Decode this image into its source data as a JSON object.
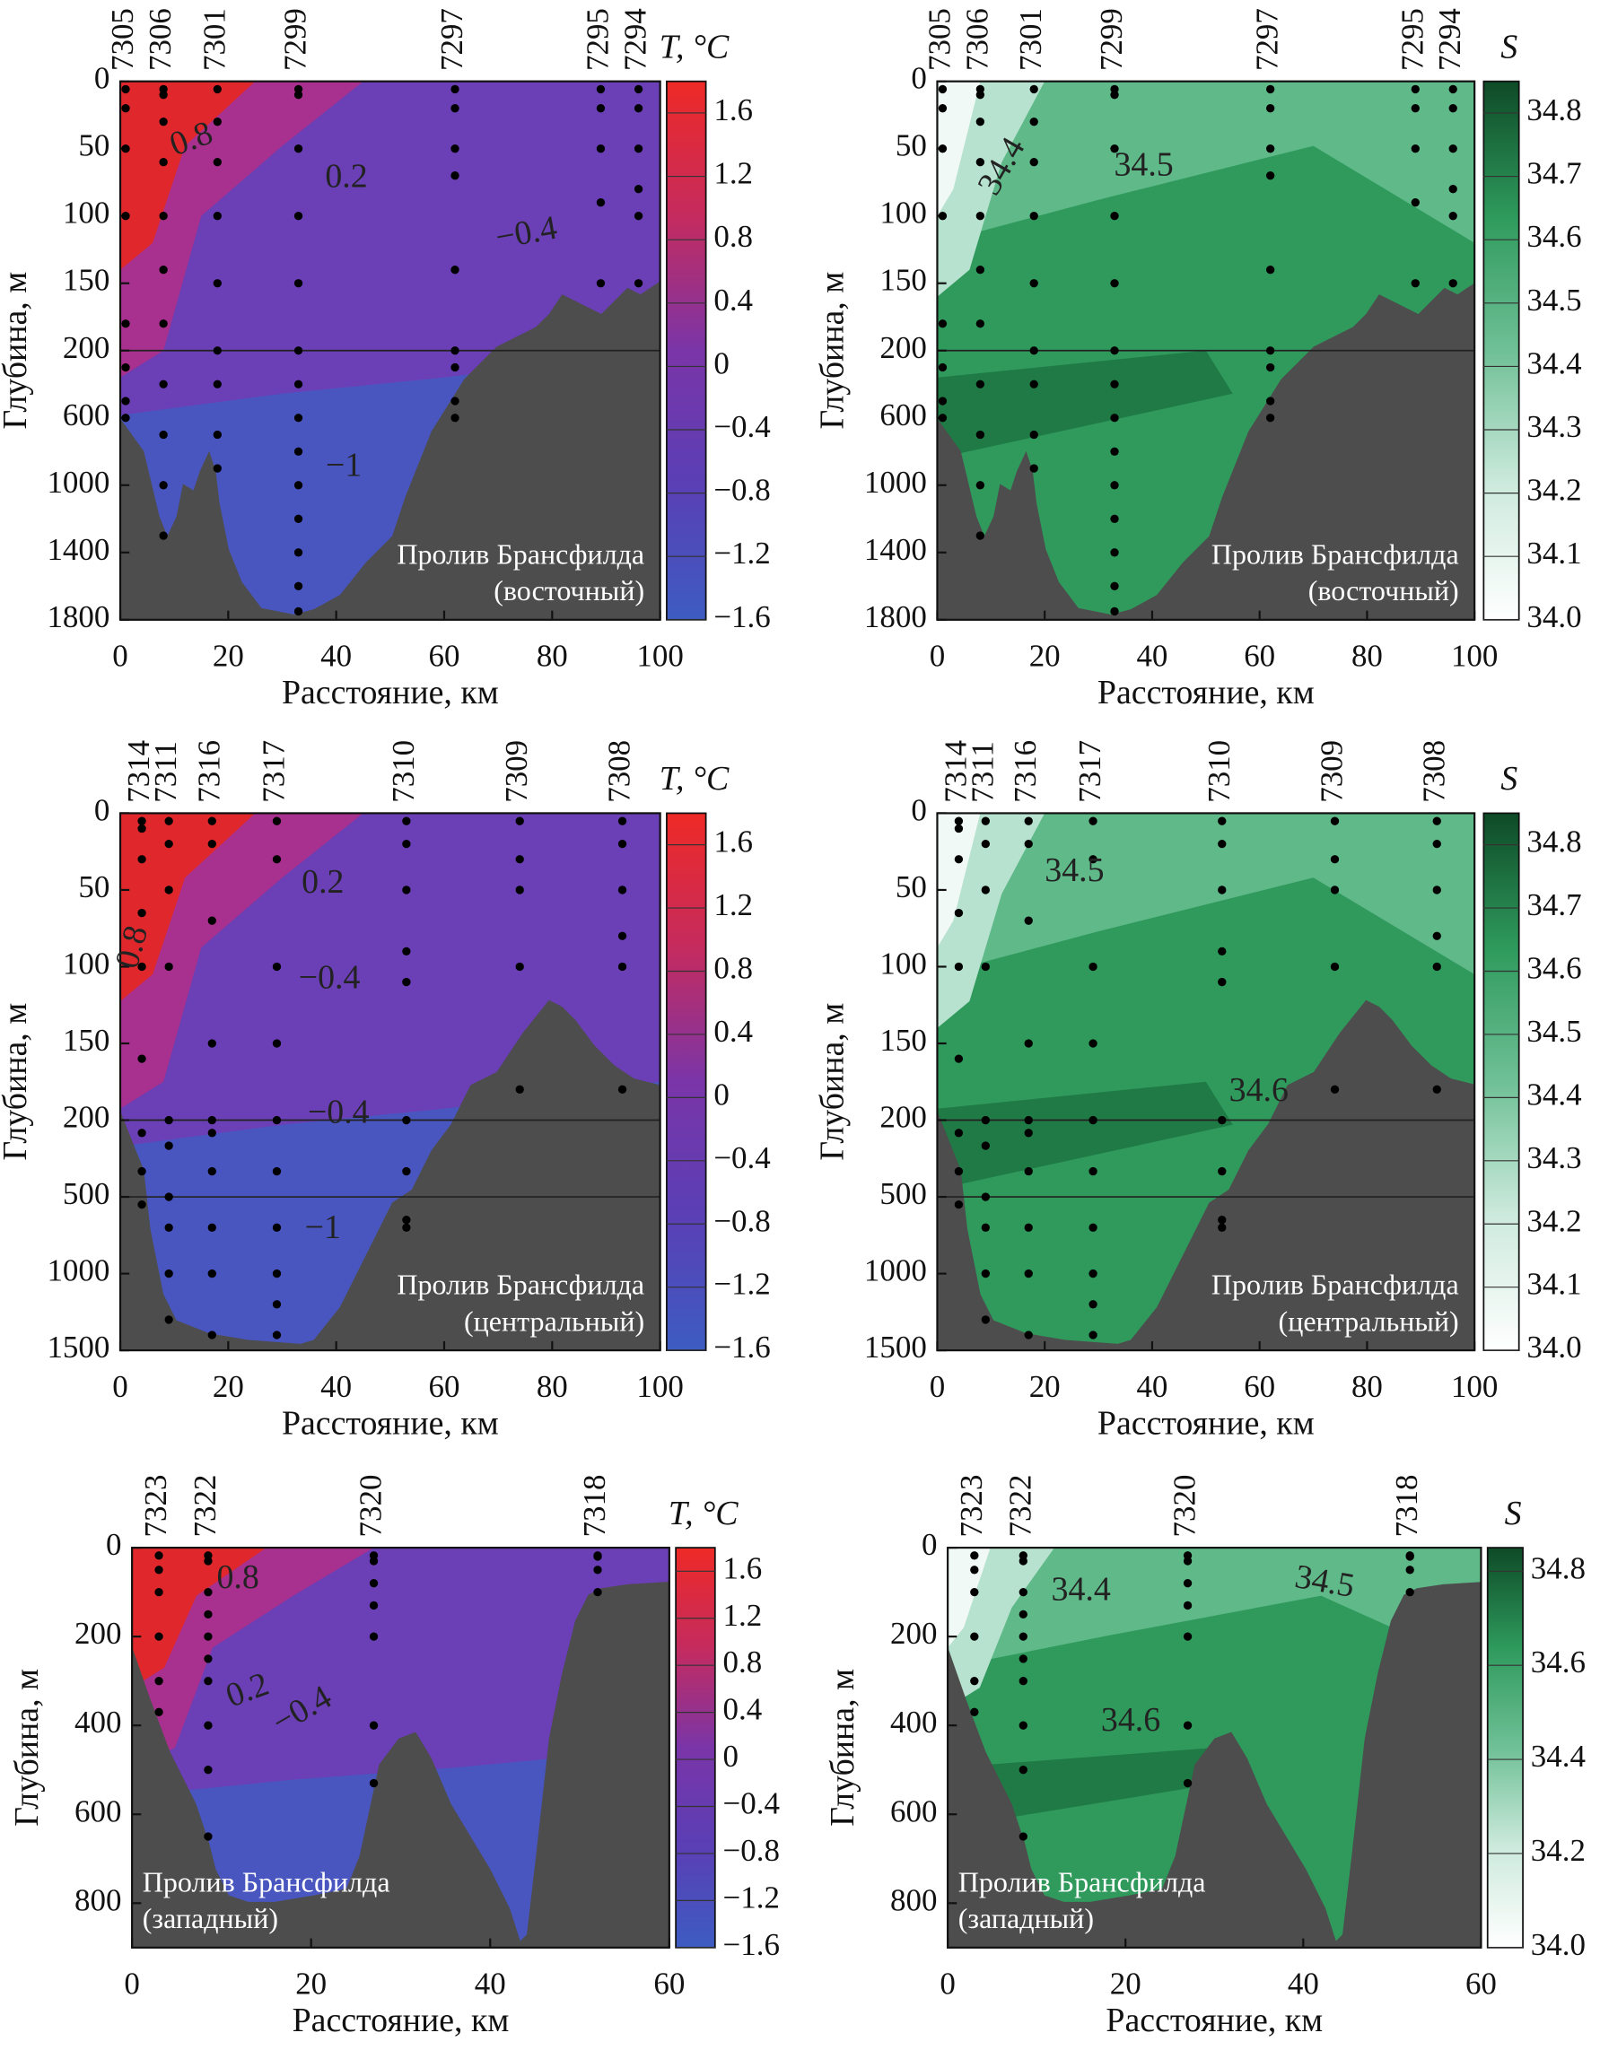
{
  "chart_data": [
    {
      "type": "contour",
      "xlabel": "Расстояние, км",
      "ylabel": "Глубина, м",
      "xlim": [
        0,
        100
      ],
      "xticks": [
        0,
        20,
        40,
        60,
        80,
        100
      ],
      "ylim": [
        0,
        1800
      ],
      "yticks": [
        0,
        50,
        100,
        150,
        200,
        600,
        1000,
        1400,
        1800
      ],
      "stations": [
        {
          "name": "7305",
          "x": 1,
          "depths": [
            0,
            20,
            50,
            100,
            180,
            300,
            500,
            600
          ]
        },
        {
          "name": "7306",
          "x": 8,
          "depths": [
            0,
            10,
            30,
            60,
            100,
            140,
            180,
            400,
            700,
            1000,
            1300
          ]
        },
        {
          "name": "7301",
          "x": 18,
          "depths": [
            0,
            30,
            60,
            100,
            150,
            200,
            400,
            700,
            900
          ]
        },
        {
          "name": "7299",
          "x": 33,
          "depths": [
            0,
            10,
            50,
            100,
            150,
            200,
            400,
            600,
            800,
            1000,
            1200,
            1400,
            1600,
            1750
          ]
        },
        {
          "name": "7297",
          "x": 62,
          "depths": [
            0,
            20,
            50,
            70,
            140,
            200,
            300,
            500,
            600
          ]
        },
        {
          "name": "7295",
          "x": 89,
          "depths": [
            0,
            20,
            50,
            90,
            150
          ]
        },
        {
          "name": "7294",
          "x": 96,
          "depths": [
            0,
            20,
            50,
            80,
            100,
            150
          ]
        }
      ],
      "colorbar": {
        "title": "T, °C",
        "clim": [
          -1.6,
          1.8
        ],
        "colors": [
          "#3d5cc2",
          "#5a3fb5",
          "#7a35a8",
          "#c52b5e",
          "#ee2a26"
        ],
        "ticks": [
          1.6,
          1.2,
          0.8,
          0.4,
          0,
          {
            "value": -0.4,
            "label": "−0.4"
          },
          {
            "value": -0.8,
            "label": "−0.8"
          },
          {
            "value": -1.2,
            "label": "−1.2"
          },
          {
            "value": -1.6,
            "label": "−1.6"
          }
        ]
      },
      "contour_labels": [
        0.8,
        0.2,
        {
          "value": -0.4,
          "label": "−0.4"
        },
        {
          "value": -1,
          "label": "−1"
        }
      ],
      "annotation": [
        "Пролив Брансфилда",
        "(восточный)"
      ]
    },
    {
      "type": "contour",
      "xlabel": "Расстояние, км",
      "ylabel": "Глубина, м",
      "xlim": [
        0,
        100
      ],
      "xticks": [
        0,
        20,
        40,
        60,
        80,
        100
      ],
      "ylim": [
        0,
        1800
      ],
      "yticks": [
        0,
        50,
        100,
        150,
        200,
        600,
        1000,
        1400,
        1800
      ],
      "stations": [
        {
          "name": "7305",
          "x": 1,
          "depths": [
            0,
            20,
            50,
            100,
            180,
            300,
            500,
            600
          ]
        },
        {
          "name": "7306",
          "x": 8,
          "depths": [
            0,
            10,
            30,
            60,
            100,
            140,
            180,
            400,
            700,
            1000,
            1300
          ]
        },
        {
          "name": "7301",
          "x": 18,
          "depths": [
            0,
            30,
            60,
            100,
            150,
            200,
            400,
            700,
            900
          ]
        },
        {
          "name": "7299",
          "x": 33,
          "depths": [
            0,
            10,
            50,
            100,
            150,
            200,
            400,
            600,
            800,
            1000,
            1200,
            1400,
            1600,
            1750
          ]
        },
        {
          "name": "7297",
          "x": 62,
          "depths": [
            0,
            20,
            50,
            70,
            140,
            200,
            300,
            500,
            600
          ]
        },
        {
          "name": "7295",
          "x": 89,
          "depths": [
            0,
            20,
            50,
            90,
            150
          ]
        },
        {
          "name": "7294",
          "x": 96,
          "depths": [
            0,
            20,
            50,
            80,
            100,
            150
          ]
        }
      ],
      "colorbar": {
        "title": "S",
        "clim": [
          34.0,
          34.85
        ],
        "colors": [
          "#ffffff",
          "#cdeadd",
          "#6fc096",
          "#2e9a5c",
          "#0e4a27"
        ],
        "ticks": [
          34.8,
          34.7,
          34.6,
          34.5,
          34.4,
          34.3,
          34.2,
          34.1,
          {
            "value": 34,
            "label": "34.0"
          }
        ]
      },
      "contour_labels": [
        34.4,
        34.5
      ],
      "annotation": [
        "Пролив Брансфилда",
        "(восточный)"
      ]
    },
    {
      "type": "contour",
      "xlabel": "Расстояние, км",
      "ylabel": "Глубина, м",
      "xlim": [
        0,
        100
      ],
      "xticks": [
        0,
        20,
        40,
        60,
        80,
        100
      ],
      "ylim": [
        0,
        1500
      ],
      "yticks": [
        0,
        50,
        100,
        150,
        200,
        500,
        1000,
        1500
      ],
      "stations": [
        {
          "name": "7314",
          "x": 4,
          "depths": [
            0,
            10,
            30,
            65,
            100,
            160,
            250,
            400,
            550
          ]
        },
        {
          "name": "7311",
          "x": 9,
          "depths": [
            0,
            20,
            50,
            100,
            200,
            300,
            500,
            700,
            1000,
            1300
          ]
        },
        {
          "name": "7316",
          "x": 17,
          "depths": [
            0,
            20,
            70,
            150,
            200,
            250,
            400,
            700,
            1000,
            1400
          ]
        },
        {
          "name": "7317",
          "x": 29,
          "depths": [
            0,
            30,
            100,
            150,
            200,
            400,
            700,
            1000,
            1200,
            1400
          ]
        },
        {
          "name": "7310",
          "x": 53,
          "depths": [
            0,
            20,
            50,
            90,
            110,
            200,
            400,
            650,
            700
          ]
        },
        {
          "name": "7309",
          "x": 74,
          "depths": [
            0,
            30,
            50,
            100,
            180
          ]
        },
        {
          "name": "7308",
          "x": 93,
          "depths": [
            0,
            20,
            50,
            80,
            100,
            180
          ]
        }
      ],
      "colorbar": {
        "title": "T, °C",
        "clim": [
          -1.6,
          1.8
        ],
        "colors": [
          "#3d5cc2",
          "#5a3fb5",
          "#7a35a8",
          "#c52b5e",
          "#ee2a26"
        ],
        "ticks": [
          1.6,
          1.2,
          0.8,
          0.4,
          0,
          {
            "value": -0.4,
            "label": "−0.4"
          },
          {
            "value": -0.8,
            "label": "−0.8"
          },
          {
            "value": -1.2,
            "label": "−1.2"
          },
          {
            "value": -1.6,
            "label": "−1.6"
          }
        ]
      },
      "contour_labels": [
        0.8,
        0.2,
        {
          "value": -0.4,
          "label": "−0.4"
        },
        {
          "value": -0.4,
          "label": "−0.4"
        },
        {
          "value": -1,
          "label": "−1"
        }
      ],
      "annotation": [
        "Пролив Брансфилда",
        "(центральный)"
      ]
    },
    {
      "type": "contour",
      "xlabel": "Расстояние, км",
      "ylabel": "Глубина, м",
      "xlim": [
        0,
        100
      ],
      "xticks": [
        0,
        20,
        40,
        60,
        80,
        100
      ],
      "ylim": [
        0,
        1500
      ],
      "yticks": [
        0,
        50,
        100,
        150,
        200,
        500,
        1000,
        1500
      ],
      "stations": [
        {
          "name": "7314",
          "x": 4,
          "depths": [
            0,
            10,
            30,
            65,
            100,
            160,
            250,
            400,
            550
          ]
        },
        {
          "name": "7311",
          "x": 9,
          "depths": [
            0,
            20,
            50,
            100,
            200,
            300,
            500,
            700,
            1000,
            1300
          ]
        },
        {
          "name": "7316",
          "x": 17,
          "depths": [
            0,
            20,
            70,
            150,
            200,
            250,
            400,
            700,
            1000,
            1400
          ]
        },
        {
          "name": "7317",
          "x": 29,
          "depths": [
            0,
            30,
            100,
            150,
            200,
            400,
            700,
            1000,
            1200,
            1400
          ]
        },
        {
          "name": "7310",
          "x": 53,
          "depths": [
            0,
            20,
            50,
            90,
            110,
            200,
            400,
            650,
            700
          ]
        },
        {
          "name": "7309",
          "x": 74,
          "depths": [
            0,
            30,
            50,
            100,
            180
          ]
        },
        {
          "name": "7308",
          "x": 93,
          "depths": [
            0,
            20,
            50,
            80,
            100,
            180
          ]
        }
      ],
      "colorbar": {
        "title": "S",
        "clim": [
          34.0,
          34.85
        ],
        "colors": [
          "#ffffff",
          "#cdeadd",
          "#6fc096",
          "#2e9a5c",
          "#0e4a27"
        ],
        "ticks": [
          34.8,
          34.7,
          34.6,
          34.5,
          34.4,
          34.3,
          34.2,
          34.1,
          {
            "value": 34,
            "label": "34.0"
          }
        ]
      },
      "contour_labels": [
        34.5,
        34.6
      ],
      "annotation": [
        "Пролив Брансфилда",
        "(центральный)"
      ]
    },
    {
      "type": "contour",
      "xlabel": "Расстояние, км",
      "ylabel": "Глубина, м",
      "xlim": [
        0,
        60
      ],
      "xticks": [
        0,
        20,
        40,
        60
      ],
      "ylim": [
        0,
        900
      ],
      "yticks": [
        0,
        200,
        400,
        600,
        800
      ],
      "stations": [
        {
          "name": "7323",
          "x": 3,
          "depths": [
            0,
            50,
            100,
            200,
            300,
            370
          ]
        },
        {
          "name": "7322",
          "x": 8.5,
          "depths": [
            0,
            30,
            100,
            150,
            200,
            250,
            300,
            400,
            500,
            650
          ]
        },
        {
          "name": "7320",
          "x": 27,
          "depths": [
            0,
            30,
            80,
            130,
            200,
            400,
            530
          ]
        },
        {
          "name": "7318",
          "x": 52,
          "depths": [
            0,
            20,
            50,
            100
          ]
        }
      ],
      "colorbar": {
        "title": "T, °C",
        "clim": [
          -1.6,
          1.8
        ],
        "colors": [
          "#3d5cc2",
          "#5a3fb5",
          "#7a35a8",
          "#c52b5e",
          "#ee2a26"
        ],
        "ticks": [
          1.6,
          1.2,
          0.8,
          0.4,
          0,
          {
            "value": -0.4,
            "label": "−0.4"
          },
          {
            "value": -0.8,
            "label": "−0.8"
          },
          {
            "value": -1.2,
            "label": "−1.2"
          },
          {
            "value": -1.6,
            "label": "−1.6"
          }
        ]
      },
      "contour_labels": [
        0.8,
        0.2,
        {
          "value": -0.4,
          "label": "−0.4"
        }
      ],
      "annotation": [
        "Пролив Брансфилда",
        "(западный)"
      ]
    },
    {
      "type": "contour",
      "xlabel": "Расстояние, км",
      "ylabel": "Глубина, м",
      "xlim": [
        0,
        60
      ],
      "xticks": [
        0,
        20,
        40,
        60
      ],
      "ylim": [
        0,
        900
      ],
      "yticks": [
        0,
        200,
        400,
        600,
        800
      ],
      "stations": [
        {
          "name": "7323",
          "x": 3,
          "depths": [
            0,
            50,
            100,
            200,
            300,
            370
          ]
        },
        {
          "name": "7322",
          "x": 8.5,
          "depths": [
            0,
            30,
            100,
            150,
            200,
            250,
            300,
            400,
            500,
            650
          ]
        },
        {
          "name": "7320",
          "x": 27,
          "depths": [
            0,
            30,
            80,
            130,
            200,
            400,
            530
          ]
        },
        {
          "name": "7318",
          "x": 52,
          "depths": [
            0,
            20,
            50,
            100
          ]
        }
      ],
      "colorbar": {
        "title": "S",
        "clim": [
          34.0,
          34.85
        ],
        "colors": [
          "#ffffff",
          "#cdeadd",
          "#6fc096",
          "#2e9a5c",
          "#0e4a27"
        ],
        "ticks": [
          34.8,
          34.6,
          34.4,
          34.2,
          {
            "value": 34,
            "label": "34.0"
          }
        ]
      },
      "contour_labels": [
        34.4,
        34.5,
        34.6
      ],
      "annotation": [
        "Пролив Брансфилда",
        "(западный)"
      ]
    }
  ]
}
